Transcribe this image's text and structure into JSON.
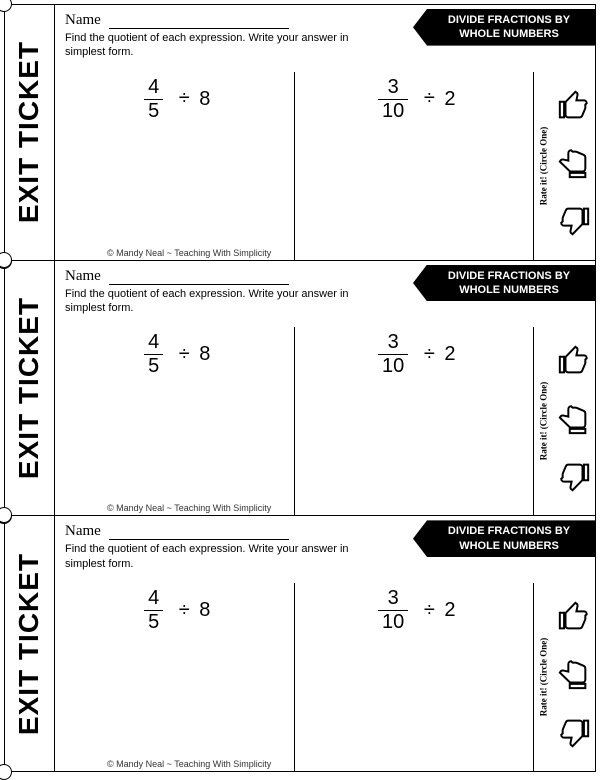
{
  "ticket": {
    "left_label": "EXIT TICKET",
    "name_label": "Name",
    "instructions": "Find the quotient of each expression. Write your answer in simplest form.",
    "banner_line1": "DIVIDE FRACTIONS BY",
    "banner_line2": "WHOLE NUMBERS",
    "rate_label": "Rate it! (Circle One)",
    "copyright": "© Mandy Neal ~ Teaching With Simplicity",
    "problem1": {
      "numerator": "4",
      "denominator": "5",
      "operator": "÷",
      "whole": "8"
    },
    "problem2": {
      "numerator": "3",
      "denominator": "10",
      "operator": "÷",
      "whole": "2"
    }
  },
  "style": {
    "ticket_count": 3,
    "background": "#ffffff",
    "border_color": "#000000",
    "banner_bg": "#000000",
    "banner_fg": "#ffffff"
  }
}
